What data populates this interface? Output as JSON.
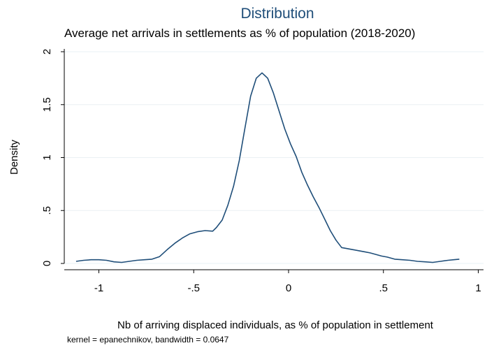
{
  "chart_data": {
    "type": "line",
    "title": "Distribution",
    "subtitle": "Average net arrivals in settlements as % of population (2018-2020)",
    "xlabel": "Nb of arriving displaced individuals, as % of population in settlement",
    "ylabel": "Density",
    "note": "kernel = epanechnikov, bandwidth = 0.0647",
    "xlim": [
      -1.1,
      1.0
    ],
    "ylim": [
      0,
      2
    ],
    "xticks": [
      -1,
      -0.5,
      0,
      0.5,
      1
    ],
    "xtick_labels": [
      "-1",
      "-.5",
      "0",
      ".5",
      "1"
    ],
    "yticks": [
      0,
      0.5,
      1,
      1.5,
      2
    ],
    "ytick_labels": [
      "0",
      ".5",
      "1",
      "1.5",
      "2"
    ],
    "grid": true,
    "line_color": "#1f4e79",
    "series": [
      {
        "x": [
          -1.12,
          -1.08,
          -1.04,
          -1.0,
          -0.96,
          -0.92,
          -0.88,
          -0.84,
          -0.8,
          -0.76,
          -0.72,
          -0.68,
          -0.64,
          -0.6,
          -0.56,
          -0.52,
          -0.48,
          -0.44,
          -0.4,
          -0.38,
          -0.35,
          -0.32,
          -0.29,
          -0.26,
          -0.23,
          -0.2,
          -0.17,
          -0.14,
          -0.11,
          -0.08,
          -0.05,
          -0.02,
          0.01,
          0.04,
          0.07,
          0.1,
          0.13,
          0.16,
          0.19,
          0.22,
          0.25,
          0.28,
          0.31,
          0.34,
          0.37,
          0.4,
          0.43,
          0.46,
          0.49,
          0.52,
          0.56,
          0.6,
          0.64,
          0.68,
          0.72,
          0.76,
          0.8,
          0.84,
          0.87,
          0.9
        ],
        "y": [
          0.02,
          0.03,
          0.035,
          0.035,
          0.03,
          0.015,
          0.01,
          0.02,
          0.03,
          0.035,
          0.04,
          0.065,
          0.13,
          0.19,
          0.24,
          0.28,
          0.3,
          0.31,
          0.305,
          0.34,
          0.41,
          0.55,
          0.73,
          0.97,
          1.28,
          1.58,
          1.75,
          1.8,
          1.75,
          1.61,
          1.44,
          1.27,
          1.13,
          1.01,
          0.86,
          0.74,
          0.63,
          0.53,
          0.42,
          0.31,
          0.22,
          0.15,
          0.14,
          0.13,
          0.12,
          0.11,
          0.1,
          0.085,
          0.07,
          0.06,
          0.04,
          0.035,
          0.03,
          0.02,
          0.015,
          0.01,
          0.02,
          0.03,
          0.035,
          0.04
        ]
      }
    ]
  }
}
